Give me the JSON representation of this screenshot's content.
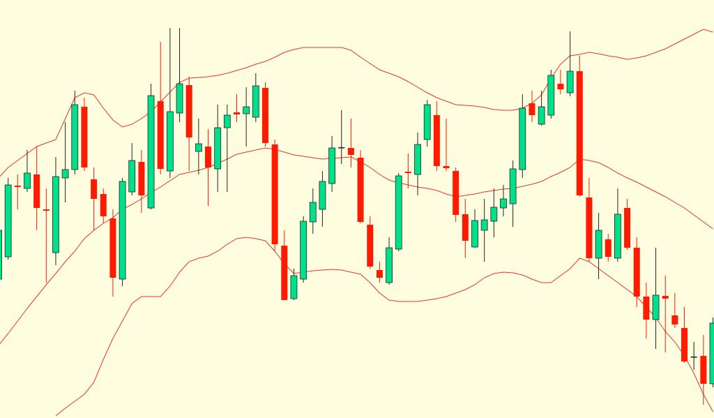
{
  "chart_data": {
    "type": "candlestick",
    "open": [
      199,
      231,
      333,
      329,
      349,
      299,
      237,
      344,
      356,
      446,
      342,
      321,
      286,
      199,
      324,
      367,
      301,
      454,
      354,
      437,
      477,
      382,
      389,
      357,
      416,
      438,
      436,
      431,
      473,
      392,
      247,
      171,
      199,
      281,
      299,
      336,
      388,
      387,
      373,
      277,
      212,
      194,
      242,
      353,
      349,
      399,
      434,
      361,
      354,
      292,
      245,
      269,
      282,
      301,
      307,
      356,
      451,
      421,
      434,
      479,
      466,
      497,
      316,
      229,
      256,
      229,
      301,
      244,
      174,
      141,
      175,
      147,
      129,
      88,
      89,
      49
    ],
    "high": [
      289,
      344,
      349,
      384,
      389,
      329,
      374,
      424,
      469,
      459,
      359,
      329,
      299,
      344,
      394,
      384,
      479,
      539,
      559,
      559,
      489,
      429,
      414,
      449,
      449,
      464,
      474,
      494,
      481,
      399,
      269,
      214,
      289,
      329,
      354,
      404,
      441,
      429,
      384,
      289,
      224,
      259,
      351,
      379,
      409,
      456,
      454,
      429,
      359,
      314,
      299,
      314,
      329,
      334,
      369,
      464,
      469,
      469,
      499,
      499,
      554,
      519,
      344,
      294,
      264,
      329,
      314,
      259,
      194,
      244,
      204,
      179,
      159,
      109,
      119,
      144
    ],
    "low": [
      179,
      227,
      299,
      324,
      269,
      194,
      219,
      309,
      349,
      354,
      269,
      279,
      174,
      189,
      319,
      294,
      299,
      349,
      344,
      424,
      354,
      349,
      304,
      324,
      324,
      424,
      389,
      424,
      389,
      239,
      169,
      169,
      194,
      264,
      274,
      324,
      364,
      359,
      279,
      214,
      194,
      191,
      239,
      329,
      319,
      389,
      354,
      354,
      281,
      229,
      244,
      224,
      259,
      289,
      274,
      344,
      424,
      419,
      429,
      464,
      461,
      317,
      224,
      199,
      224,
      224,
      241,
      159,
      114,
      99,
      94,
      129,
      79,
      69,
      19,
      44
    ],
    "close": [
      269,
      334,
      331,
      351,
      301,
      297,
      346,
      356,
      449,
      359,
      314,
      289,
      201,
      339,
      369,
      319,
      462,
      357,
      439,
      479,
      402,
      393,
      359,
      416,
      434,
      435,
      446,
      476,
      394,
      249,
      169,
      204,
      282,
      309,
      339,
      387,
      388,
      377,
      281,
      217,
      201,
      244,
      347,
      351,
      392,
      449,
      361,
      358,
      291,
      254,
      283,
      284,
      302,
      314,
      357,
      444,
      434,
      446,
      491,
      471,
      497,
      319,
      229,
      269,
      231,
      292,
      244,
      174,
      141,
      176,
      171,
      134,
      81,
      88,
      49,
      136
    ],
    "up_color": "#00e08a",
    "down_color": "#ff1a00",
    "flat_color": "#1a1a1a",
    "lines": [
      {
        "color": "#e8352a",
        "values": [
          344,
          359,
          369,
          379,
          389,
          394,
          399,
          429,
          459,
          466,
          463,
          444,
          427,
          417,
          421,
          429,
          439,
          453,
          467,
          481,
          487,
          488,
          489,
          491,
          494,
          498,
          502,
          507,
          511,
          517,
          524,
          528,
          531,
          531,
          531,
          531,
          531,
          527,
          517,
          508,
          499,
          494,
          489,
          482,
          474,
          466,
          459,
          454,
          449,
          448,
          447,
          445,
          442,
          441,
          441,
          444,
          451,
          463,
          487,
          507,
          519,
          521,
          524,
          522,
          519,
          517,
          514,
          516,
          519,
          524,
          529,
          536,
          543,
          550,
          557,
          553
        ]
      },
      {
        "color": "#e8352a",
        "values": [
          104,
          121,
          139,
          157,
          174,
          191,
          207,
          224,
          239,
          257,
          269,
          279,
          287,
          299,
          306,
          314,
          323,
          331,
          340,
          349,
          352,
          355,
          359,
          365,
          371,
          378,
          381,
          384,
          387,
          385,
          381,
          377,
          375,
          373,
          371,
          372,
          373,
          374,
          367,
          359,
          349,
          341,
          337,
          334,
          331,
          329,
          326,
          321,
          317,
          319,
          321,
          324,
          326,
          328,
          329,
          332,
          335,
          339,
          346,
          352,
          359,
          371,
          369,
          366,
          359,
          351,
          344,
          338,
          331,
          324,
          317,
          309,
          301,
          291,
          281,
          271
        ]
      },
      {
        "color": "#e8352a",
        "values": [
          null,
          null,
          null,
          null,
          null,
          null,
          3,
          14,
          24,
          34,
          51,
          84,
          114,
          139,
          164,
          174,
          174,
          174,
          189,
          209,
          224,
          229,
          232,
          239,
          249,
          257,
          259,
          257,
          254,
          239,
          221,
          207,
          209,
          211,
          212,
          213,
          212,
          209,
          206,
          194,
          179,
          169,
          167,
          167,
          167,
          169,
          171,
          174,
          179,
          184,
          191,
          201,
          207,
          209,
          208,
          205,
          199,
          194,
          194,
          204,
          214,
          229,
          224,
          214,
          204,
          194,
          184,
          174,
          159,
          144,
          124,
          109,
          89,
          64,
          34,
          9
        ]
      }
    ],
    "ylim": [
      0,
      599
    ]
  }
}
